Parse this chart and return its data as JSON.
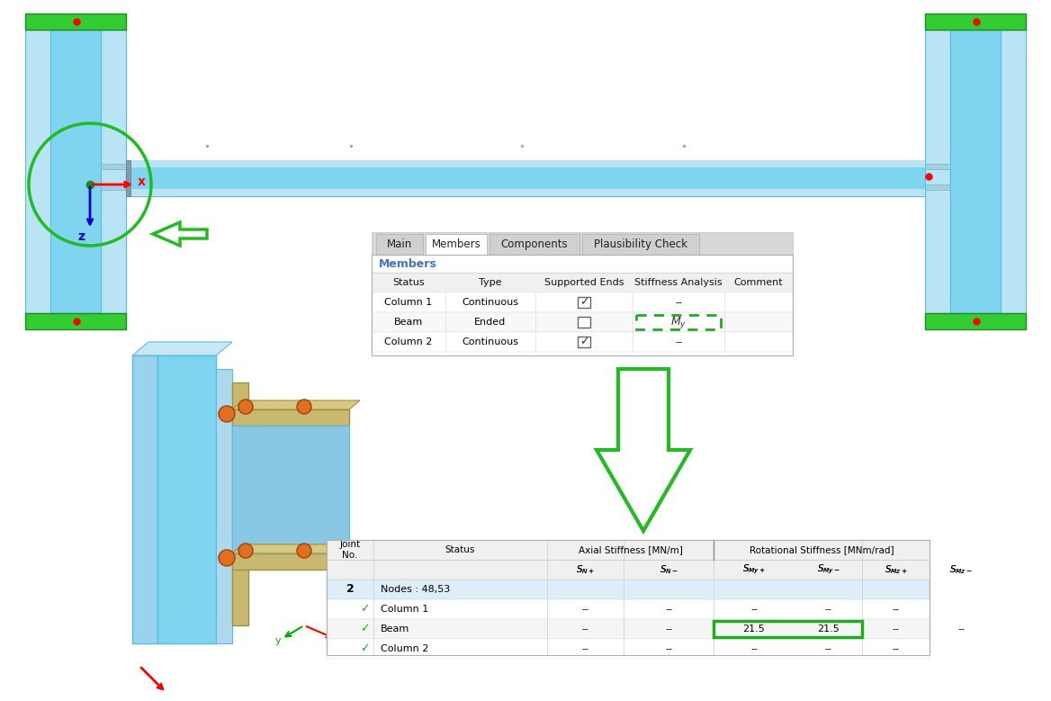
{
  "bg_color": "#ffffff",
  "col_blue_light": "#7fd4f0",
  "col_blue_mid": "#5bbce0",
  "col_blue_pale": "#b8e4f4",
  "col_green": "#22bb22",
  "col_green_dark": "#228822",
  "col_orange": "#e87020",
  "col_tan": "#c8b860",
  "col_gray_light": "#d8d8d8",
  "col_gray_header": "#e8e8e8",
  "col_blue_text": "#4472c4",
  "col_table_alt": "#ddeeff",
  "tab1_tabs": [
    "Main",
    "Members",
    "Components",
    "Plausibility Check"
  ],
  "tab1_active": "Members",
  "tab1_section": "Members",
  "tab1_headers": [
    "Status",
    "Type",
    "Supported Ends",
    "Stiffness Analysis",
    "Comment"
  ],
  "tab1_rows": [
    [
      "Column 1",
      "Continuous",
      "check",
      "--",
      ""
    ],
    [
      "Beam",
      "Ended",
      "",
      "My",
      ""
    ],
    [
      "Column 2",
      "Continuous",
      "check",
      "--",
      ""
    ]
  ],
  "tab2_axial_header": "Axial Stiffness [MN/m]",
  "tab2_rot_header": "Rotational Stiffness [MNm/rad]",
  "tab2_joint": "2",
  "tab2_nodes": "Nodes : 48,53",
  "tab2_rows": [
    [
      "check",
      "Column 1",
      "--",
      "--",
      "--",
      "--",
      "--",
      ""
    ],
    [
      "check",
      "Beam",
      "--",
      "--",
      "21.5",
      "21.5",
      "--",
      "--"
    ],
    [
      "check",
      "Column 2",
      "--",
      "--",
      "--",
      "--",
      "--",
      ""
    ]
  ]
}
